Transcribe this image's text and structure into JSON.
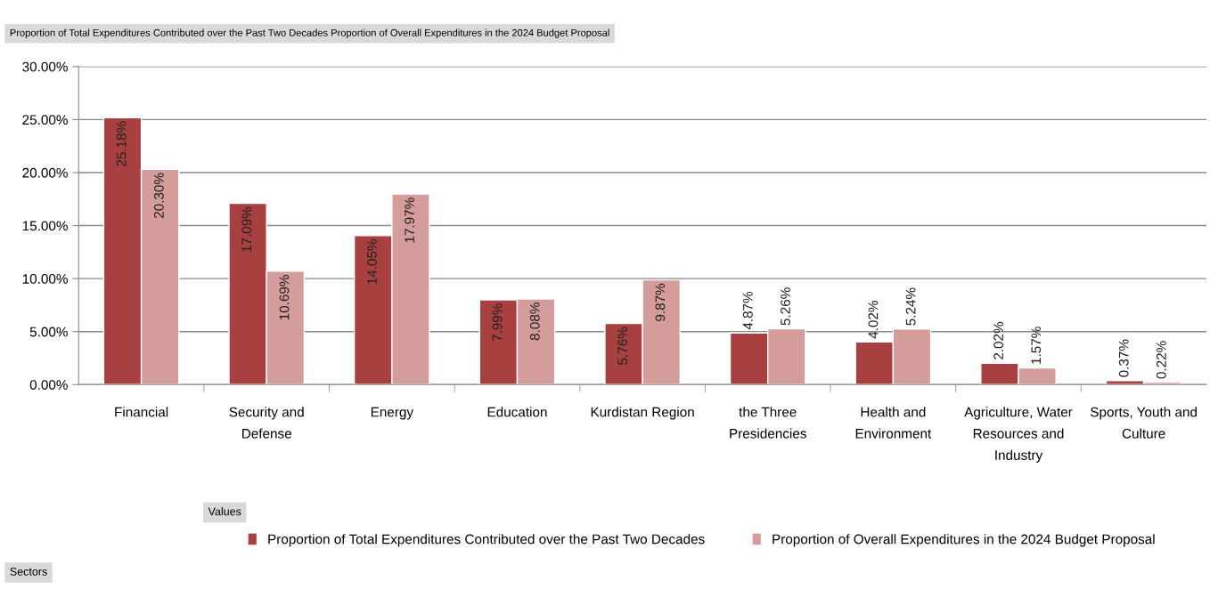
{
  "chart_data": {
    "type": "bar",
    "title": "Proportion of Total Expenditures Contributed over the Past Two Decades Proportion of Overall Expenditures in the 2024 Budget Proposal",
    "categories": [
      "Financial",
      "Security and Defense",
      "Energy",
      "Education",
      "Kurdistan Region",
      "the Three Presidencies",
      "Health and Environment",
      "Agriculture, Water Resources and Industry",
      "Sports, Youth and Culture"
    ],
    "series": [
      {
        "name": "Proportion of Total Expenditures Contributed over the Past Two Decades",
        "color": "#a8403f",
        "values": [
          25.18,
          17.09,
          14.05,
          7.99,
          5.76,
          4.87,
          4.02,
          2.02,
          0.37
        ],
        "value_labels": [
          "25.18%",
          "17.09%",
          "14.05%",
          "7.99%",
          "5.76%",
          "4.87%",
          "4.02%",
          "2.02%",
          "0.37%"
        ]
      },
      {
        "name": "Proportion of Overall Expenditures in the 2024 Budget Proposal",
        "color": "#d49c9b",
        "values": [
          20.3,
          10.69,
          17.97,
          8.08,
          9.87,
          5.26,
          5.24,
          1.57,
          0.22
        ],
        "value_labels": [
          "20.30%",
          "10.69%",
          "17.97%",
          "8.08%",
          "9.87%",
          "5.26%",
          "5.24%",
          "1.57%",
          "0.22%"
        ]
      }
    ],
    "ylim": [
      0,
      30
    ],
    "yticks": [
      {
        "value": 0,
        "label": "0.00%"
      },
      {
        "value": 5,
        "label": "5.00%"
      },
      {
        "value": 10,
        "label": "10.00%"
      },
      {
        "value": 15,
        "label": "15.00%"
      },
      {
        "value": 20,
        "label": "20.00%"
      },
      {
        "value": 25,
        "label": "25.00%"
      },
      {
        "value": 30,
        "label": "30.00%"
      }
    ],
    "grid": "y",
    "legend": "bottom",
    "annotations": [
      "Values",
      "Sectors"
    ]
  }
}
